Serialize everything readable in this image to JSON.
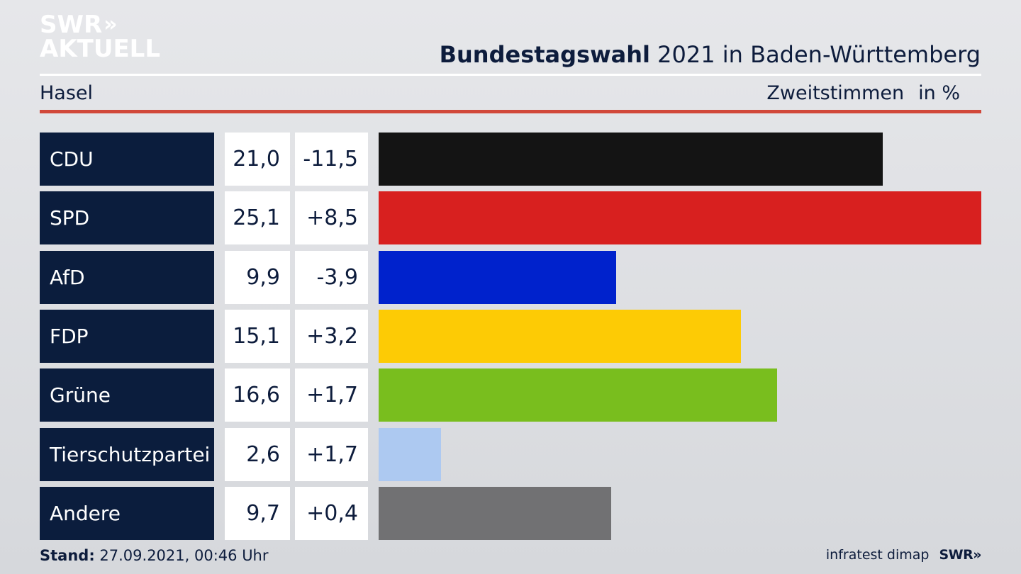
{
  "logo": {
    "line1": "SWR",
    "chevrons": "»",
    "line2": "AKTUELL"
  },
  "header": {
    "title_bold": "Bundestagswahl",
    "title_rest": "2021 in Baden-Württemberg",
    "location": "Hasel",
    "measure": "Zweitstimmen",
    "unit": "in %"
  },
  "chart_data": {
    "type": "bar",
    "orientation": "horizontal",
    "categories": [
      "CDU",
      "SPD",
      "AfD",
      "FDP",
      "Grüne",
      "Tierschutzpartei",
      "Andere"
    ],
    "values": [
      21.0,
      25.1,
      9.9,
      15.1,
      16.6,
      2.6,
      9.7
    ],
    "value_labels": [
      "21,0",
      "25,1",
      "9,9",
      "15,1",
      "16,6",
      "2,6",
      "9,7"
    ],
    "diff_labels": [
      "-11,5",
      "+8,5",
      "-3,9",
      "+3,2",
      "+1,7",
      "+1,7",
      "+0,4"
    ],
    "diffs": [
      -11.5,
      8.5,
      -3.9,
      3.2,
      1.7,
      1.7,
      0.4
    ],
    "colors": [
      "#141414",
      "#d8201f",
      "#0022cc",
      "#fdcb05",
      "#79be1e",
      "#adc9f1",
      "#717173"
    ],
    "xlim": [
      0,
      25.1
    ],
    "grid": false,
    "legend": "none"
  },
  "footer": {
    "stand_label": "Stand:",
    "stand_value": "27.09.2021, 00:46 Uhr",
    "source": "infratest dimap",
    "brand": "SWR»"
  }
}
